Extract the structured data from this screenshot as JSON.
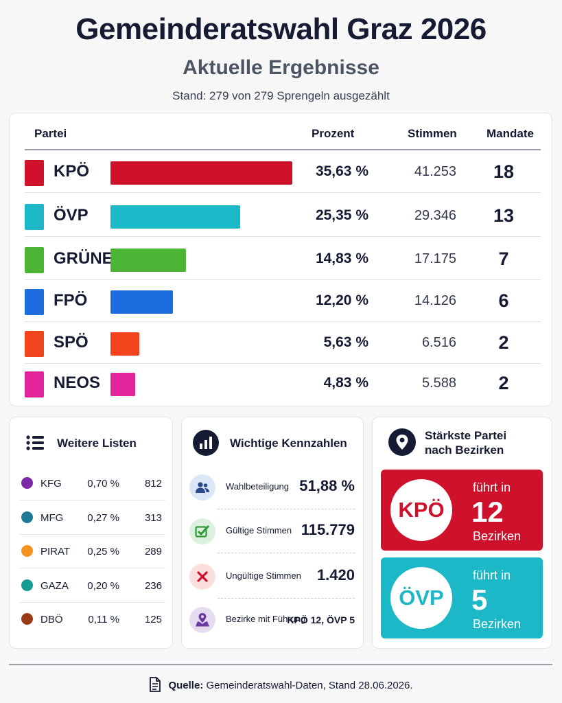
{
  "header": {
    "title": "Gemeinderatswahl Graz 2026",
    "subtitle": "Aktuelle Ergebnisse",
    "stand": "Stand: 279 von 279 Sprengeln ausgezählt"
  },
  "table": {
    "headers": {
      "party": "Partei",
      "percent": "Prozent",
      "votes": "Stimmen",
      "seats": "Mandate"
    }
  },
  "chart_data": {
    "type": "bar",
    "categories": [
      "KPÖ",
      "ÖVP",
      "GRÜNE",
      "FPÖ",
      "SPÖ",
      "NEOS"
    ],
    "values": [
      35.63,
      25.35,
      14.83,
      12.2,
      5.63,
      4.83
    ],
    "percent_labels": [
      "35,63 %",
      "25,35 %",
      "14,83 %",
      "12,20 %",
      "5,63 %",
      "4,83 %"
    ],
    "votes": [
      "41.253",
      "29.346",
      "17.175",
      "14.126",
      "6.516",
      "5.588"
    ],
    "seats": [
      "18",
      "13",
      "7",
      "6",
      "2",
      "2"
    ],
    "colors": [
      "#d0112b",
      "#1cb8c8",
      "#4cb535",
      "#1e6ddf",
      "#f2451d",
      "#e1249a"
    ],
    "xlim": [
      0,
      36
    ]
  },
  "other_lists": {
    "title": "Weitere Listen",
    "items": [
      {
        "name": "KFG",
        "percent": "0,70 %",
        "votes": "812",
        "color": "#7b2aa8"
      },
      {
        "name": "MFG",
        "percent": "0,27 %",
        "votes": "313",
        "color": "#1f7a9a"
      },
      {
        "name": "PIRAT",
        "percent": "0,25 %",
        "votes": "289",
        "color": "#f5921e"
      },
      {
        "name": "GAZA",
        "percent": "0,20 %",
        "votes": "236",
        "color": "#159b8f"
      },
      {
        "name": "DBÖ",
        "percent": "0,11 %",
        "votes": "125",
        "color": "#9a3b16"
      }
    ]
  },
  "key_figures": {
    "title": "Wichtige Kennzahlen",
    "items": [
      {
        "label": "Wahlbeteiligung",
        "value": "51,88 %",
        "icon": "people-icon"
      },
      {
        "label": "Gültige Stimmen",
        "value": "115.779",
        "icon": "check-icon"
      },
      {
        "label": "Ungültige Stimmen",
        "value": "1.420",
        "icon": "x-icon"
      },
      {
        "label": "Bezirke mit Führung",
        "value": "KPÖ 12, ÖVP 5",
        "icon": "map-pin-icon"
      }
    ]
  },
  "districts": {
    "title_line1": "Stärkste Partei",
    "title_line2": "nach Bezirken",
    "leaders": [
      {
        "party": "KPÖ",
        "leads_in": "führt in",
        "count": "12",
        "unit": "Bezirken",
        "color": "#d0112b"
      },
      {
        "party": "ÖVP",
        "leads_in": "führt in",
        "count": "5",
        "unit": "Bezirken",
        "color": "#1cb8c8"
      }
    ]
  },
  "footer": {
    "source_label": "Quelle:",
    "source_text": "Gemeinderatswahl-Daten, Stand 28.06.2026."
  }
}
